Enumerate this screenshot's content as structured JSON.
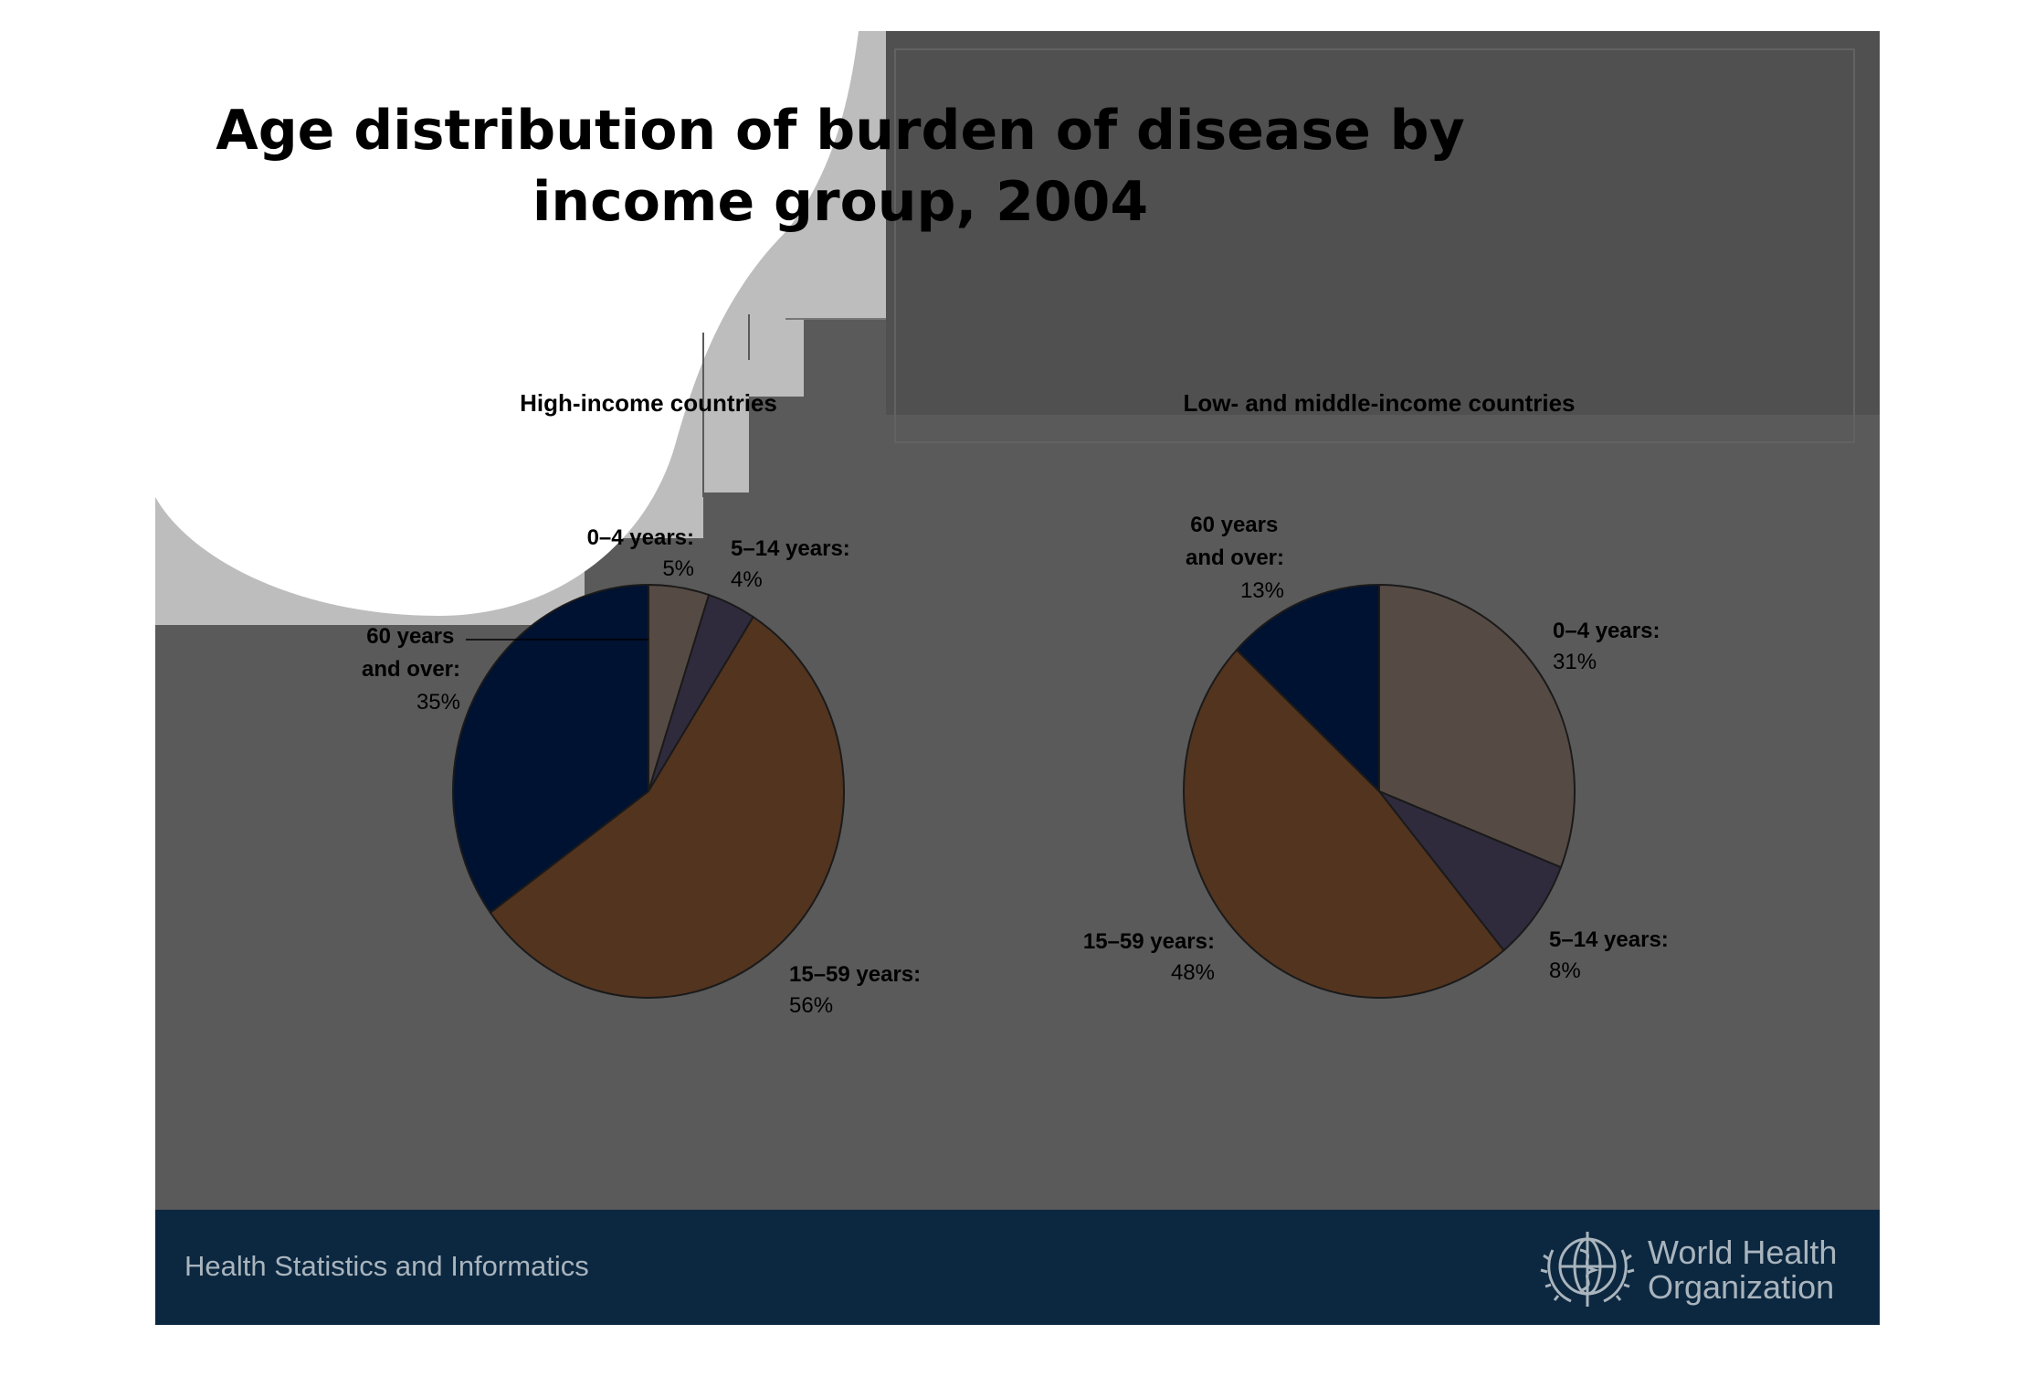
{
  "slide": {
    "title": "Age distribution of burden of disease by income group, 2004",
    "footer_text": "Health Statistics and Informatics",
    "org_name_line1": "World Health",
    "org_name_line2": "Organization"
  },
  "colors": {
    "slide_bg": "#5a5a5a",
    "footer_bg": "#0c2840",
    "age_0_4": "#564a44",
    "age_5_14": "#302b3c",
    "age_15_59": "#53341f",
    "age_60_plus": "#001232"
  },
  "chart_data": [
    {
      "type": "pie",
      "title": "High-income countries",
      "slices": [
        {
          "label": "0–4 years:",
          "value": 5,
          "value_label": "5%",
          "color": "#564a44"
        },
        {
          "label": "5–14 years:",
          "value": 4,
          "value_label": "4%",
          "color": "#302b3c"
        },
        {
          "label": "15–59 years:",
          "value": 56,
          "value_label": "56%",
          "color": "#53341f"
        },
        {
          "label": "60 years and over:",
          "value": 35,
          "value_label": "35%",
          "color": "#001232"
        }
      ]
    },
    {
      "type": "pie",
      "title": "Low- and middle-income countries",
      "slices": [
        {
          "label": "0–4 years:",
          "value": 31,
          "value_label": "31%",
          "color": "#564a44"
        },
        {
          "label": "5–14 years:",
          "value": 8,
          "value_label": "8%",
          "color": "#302b3c"
        },
        {
          "label": "15–59 years:",
          "value": 48,
          "value_label": "48%",
          "color": "#53341f"
        },
        {
          "label": "60 years and over:",
          "value": 13,
          "value_label": "13%",
          "color": "#001232"
        }
      ]
    }
  ]
}
